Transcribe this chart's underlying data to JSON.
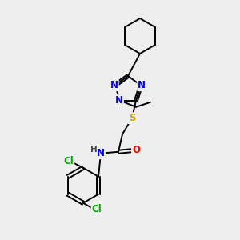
{
  "background_color": "#eeeeee",
  "atom_colors": {
    "N": "#0000FF",
    "O": "#FF0000",
    "S": "#CCAA00",
    "Cl": "#00AA00",
    "C": "#000000",
    "H": "#444444"
  },
  "bond_color": "#000000",
  "font_size_atoms": 8.5,
  "fig_size": [
    3.0,
    3.0
  ],
  "dpi": 100
}
